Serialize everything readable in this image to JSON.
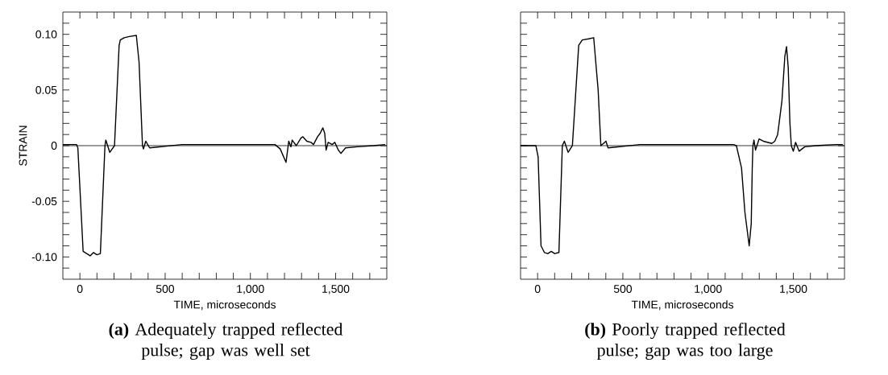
{
  "chart_data": [
    {
      "type": "line",
      "xlabel": "TIME, microseconds",
      "ylabel": "STRAIN",
      "xlim": [
        -100,
        1800
      ],
      "ylim": [
        -0.12,
        0.12
      ],
      "xticks": [
        0,
        {
          "value": 100,
          "label": null
        },
        {
          "value": 200,
          "label": null
        },
        {
          "value": 300,
          "label": null
        },
        {
          "value": 400,
          "label": null
        },
        500,
        {
          "value": 600,
          "label": null
        },
        {
          "value": 700,
          "label": null
        },
        {
          "value": 800,
          "label": null
        },
        {
          "value": 900,
          "label": null
        },
        {
          "value": 1000,
          "label": "1,000"
        },
        {
          "value": 1100,
          "label": null
        },
        {
          "value": 1200,
          "label": null
        },
        {
          "value": 1300,
          "label": null
        },
        {
          "value": 1400,
          "label": null
        },
        {
          "value": 1500,
          "label": "1,500"
        },
        {
          "value": 1600,
          "label": null
        },
        {
          "value": 1700,
          "label": null
        }
      ],
      "yticks": [
        {
          "value": -0.11,
          "label": null
        },
        {
          "value": -0.1,
          "label": "-0.10"
        },
        {
          "value": -0.09,
          "label": null
        },
        {
          "value": -0.08,
          "label": null
        },
        {
          "value": -0.07,
          "label": null
        },
        {
          "value": -0.06,
          "label": null
        },
        {
          "value": -0.05,
          "label": "-0.05"
        },
        {
          "value": -0.04,
          "label": null
        },
        {
          "value": -0.03,
          "label": null
        },
        {
          "value": -0.02,
          "label": null
        },
        {
          "value": -0.01,
          "label": null
        },
        0,
        {
          "value": 0.01,
          "label": null
        },
        {
          "value": 0.02,
          "label": null
        },
        {
          "value": 0.03,
          "label": null
        },
        {
          "value": 0.04,
          "label": null
        },
        {
          "value": 0.05,
          "label": "0.05"
        },
        {
          "value": 0.06,
          "label": null
        },
        {
          "value": 0.07,
          "label": null
        },
        {
          "value": 0.08,
          "label": null
        },
        {
          "value": 0.09,
          "label": null
        },
        {
          "value": 0.1,
          "label": "0.10"
        },
        {
          "value": 0.11,
          "label": null
        }
      ],
      "ref_lines": [
        {
          "axis": "y",
          "value": 0,
          "color": "#000000"
        }
      ],
      "annotations": [
        "**(a)** Adequately trapped reflected pulse; gap was well set"
      ],
      "series": [
        {
          "color": "#000000",
          "x": [
            -100,
            -20,
            -12,
            19,
            40,
            60,
            80,
            100,
            120,
            147,
            152,
            175,
            203,
            230,
            237,
            260,
            290,
            331,
            347,
            367,
            373,
            386,
            409,
            600,
            800,
            1000,
            1144,
            1175,
            1209,
            1225,
            1238,
            1245,
            1269,
            1297,
            1308,
            1331,
            1355,
            1370,
            1394,
            1409,
            1425,
            1436,
            1444,
            1456,
            1480,
            1495,
            1516,
            1531,
            1558,
            1628,
            1722,
            1790
          ],
          "values": [
            0.001,
            0.001,
            -0.002,
            -0.095,
            -0.097,
            -0.099,
            -0.096,
            -0.098,
            -0.097,
            0,
            0.005,
            -0.006,
            0,
            0.09,
            0.095,
            0.097,
            0.098,
            0.099,
            0.075,
            0,
            -0.003,
            0.004,
            -0.002,
            0.001,
            0.001,
            0.001,
            0.001,
            -0.003,
            -0.015,
            0.004,
            -0.001,
            0.005,
            0,
            0.007,
            0.008,
            0.004,
            0.003,
            0.001,
            0.008,
            0.011,
            0.016,
            0.011,
            -0.004,
            0.003,
            0.001,
            0.003,
            -0.004,
            -0.007,
            -0.002,
            -0.001,
            0,
            0.001
          ]
        }
      ]
    },
    {
      "type": "line",
      "xlabel": "TIME, microseconds",
      "xlim": [
        -100,
        1800
      ],
      "ylim": [
        -0.12,
        0.12
      ],
      "tick_labels": "x",
      "xticks": [
        0,
        {
          "value": 100,
          "label": null
        },
        {
          "value": 200,
          "label": null
        },
        {
          "value": 300,
          "label": null
        },
        {
          "value": 400,
          "label": null
        },
        500,
        {
          "value": 600,
          "label": null
        },
        {
          "value": 700,
          "label": null
        },
        {
          "value": 800,
          "label": null
        },
        {
          "value": 900,
          "label": null
        },
        {
          "value": 1000,
          "label": "1,000"
        },
        {
          "value": 1100,
          "label": null
        },
        {
          "value": 1200,
          "label": null
        },
        {
          "value": 1300,
          "label": null
        },
        {
          "value": 1400,
          "label": null
        },
        {
          "value": 1500,
          "label": "1,500"
        },
        {
          "value": 1600,
          "label": null
        },
        {
          "value": 1700,
          "label": null
        }
      ],
      "yticks": [
        {
          "value": -0.11,
          "label": null
        },
        {
          "value": -0.1,
          "label": null
        },
        {
          "value": -0.09,
          "label": null
        },
        {
          "value": -0.08,
          "label": null
        },
        {
          "value": -0.07,
          "label": null
        },
        {
          "value": -0.06,
          "label": null
        },
        {
          "value": -0.05,
          "label": null
        },
        {
          "value": -0.04,
          "label": null
        },
        {
          "value": -0.03,
          "label": null
        },
        {
          "value": -0.02,
          "label": null
        },
        {
          "value": -0.01,
          "label": null
        },
        {
          "value": 0,
          "label": null
        },
        {
          "value": 0.01,
          "label": null
        },
        {
          "value": 0.02,
          "label": null
        },
        {
          "value": 0.03,
          "label": null
        },
        {
          "value": 0.04,
          "label": null
        },
        {
          "value": 0.05,
          "label": null
        },
        {
          "value": 0.06,
          "label": null
        },
        {
          "value": 0.07,
          "label": null
        },
        {
          "value": 0.08,
          "label": null
        },
        {
          "value": 0.09,
          "label": null
        },
        {
          "value": 0.1,
          "label": null
        },
        {
          "value": 0.11,
          "label": null
        }
      ],
      "ref_lines": [
        {
          "axis": "y",
          "value": 0,
          "color": "#000000"
        }
      ],
      "annotations": [
        "**(b)** Poorly trapped reflected pulse; gap was too large"
      ],
      "series": [
        {
          "color": "#000000",
          "x": [
            -100,
            -10,
            3,
            20,
            40,
            60,
            80,
            100,
            125,
            145,
            157,
            179,
            204,
            241,
            262,
            300,
            329,
            355,
            371,
            401,
            413,
            600,
            800,
            1000,
            1149,
            1166,
            1196,
            1216,
            1241,
            1253,
            1259,
            1263,
            1269,
            1278,
            1299,
            1324,
            1374,
            1391,
            1408,
            1433,
            1450,
            1460,
            1470,
            1480,
            1488,
            1500,
            1513,
            1534,
            1567,
            1634,
            1751,
            1790
          ],
          "values": [
            0,
            0,
            -0.01,
            -0.09,
            -0.096,
            -0.097,
            -0.095,
            -0.097,
            -0.096,
            0,
            0.004,
            -0.006,
            0,
            0.09,
            0.095,
            0.096,
            0.097,
            0.05,
            0,
            0.004,
            -0.002,
            0.001,
            0.001,
            0.001,
            0.001,
            0,
            -0.02,
            -0.06,
            -0.09,
            -0.07,
            -0.02,
            0,
            0.005,
            -0.004,
            0.006,
            0.004,
            0.002,
            0.004,
            0.01,
            0.04,
            0.08,
            0.089,
            0.07,
            0.02,
            0,
            -0.005,
            0.003,
            -0.005,
            -0.001,
            0,
            0.001,
            0.001
          ]
        }
      ]
    }
  ]
}
